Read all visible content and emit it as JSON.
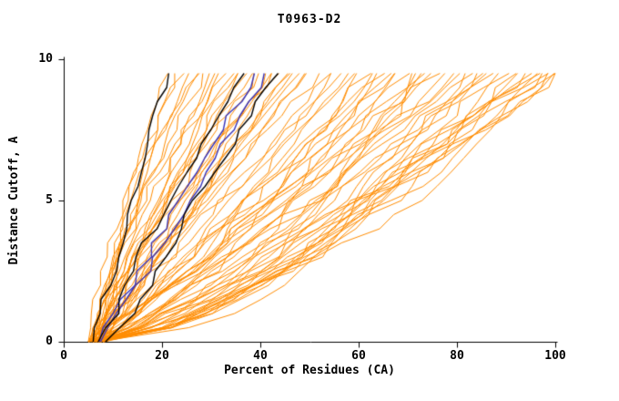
{
  "chart_data": {
    "type": "line",
    "title": "T0963-D2",
    "xlabel": "Percent of Residues (CA)",
    "ylabel": "Distance Cutoff, A",
    "xlim": [
      0,
      100
    ],
    "ylim": [
      0,
      10
    ],
    "x_ticks": [
      0,
      20,
      40,
      60,
      80,
      100
    ],
    "y_ticks": [
      0,
      5,
      10
    ],
    "grid": false,
    "legend": "none",
    "colors": {
      "ensemble": "#ff8c00",
      "highlight": "#000000",
      "special": "#3a35b8",
      "axis": "#000000"
    },
    "y_curve_max": 9.5,
    "y_curve_step": 0.5,
    "ensemble_curves": [
      [
        5,
        21,
        1.8,
        101
      ],
      [
        6,
        23,
        2.0,
        102
      ],
      [
        7,
        24,
        1.6,
        103
      ],
      [
        5.5,
        26,
        1.9,
        104
      ],
      [
        6.5,
        27,
        1.5,
        105
      ],
      [
        7.5,
        28,
        1.7,
        106
      ],
      [
        5,
        29,
        2.1,
        107
      ],
      [
        6,
        30,
        1.4,
        108
      ],
      [
        8,
        31,
        1.6,
        109
      ],
      [
        5.5,
        32,
        1.8,
        110
      ],
      [
        6,
        33,
        1.3,
        111
      ],
      [
        7,
        34,
        1.5,
        112
      ],
      [
        5,
        35,
        1.2,
        113
      ],
      [
        6.5,
        36,
        1.4,
        114
      ],
      [
        8,
        37,
        1.3,
        115
      ],
      [
        5.5,
        38,
        1.2,
        116
      ],
      [
        7,
        39,
        1.35,
        117
      ],
      [
        6,
        40,
        1.25,
        118
      ],
      [
        8.5,
        41,
        1.15,
        119
      ],
      [
        5,
        42,
        1.3,
        120
      ],
      [
        6.5,
        43,
        1.1,
        121
      ],
      [
        7.5,
        44,
        1.2,
        122
      ],
      [
        5.5,
        45,
        1.05,
        123
      ],
      [
        6,
        46,
        1.15,
        124
      ],
      [
        7,
        47,
        1.0,
        125
      ],
      [
        8,
        48,
        1.1,
        126
      ],
      [
        5,
        49,
        1.05,
        127
      ],
      [
        6.5,
        50,
        0.95,
        128
      ],
      [
        7.5,
        52,
        1.0,
        129
      ],
      [
        5.5,
        54,
        0.9,
        130
      ],
      [
        6,
        55,
        0.95,
        131
      ],
      [
        7,
        56,
        0.85,
        132
      ],
      [
        8,
        58,
        0.9,
        133
      ],
      [
        5,
        59,
        0.8,
        134
      ],
      [
        6.5,
        60,
        0.85,
        135
      ],
      [
        7.5,
        62,
        0.8,
        136
      ],
      [
        5.5,
        63,
        0.75,
        137
      ],
      [
        6,
        64,
        0.8,
        138
      ],
      [
        7,
        65,
        0.72,
        139
      ],
      [
        8,
        66,
        0.78,
        140
      ],
      [
        5,
        67,
        0.7,
        141
      ],
      [
        6.5,
        68,
        0.75,
        142
      ],
      [
        7.5,
        70,
        0.68,
        143
      ],
      [
        5.5,
        71,
        0.72,
        144
      ],
      [
        6,
        72,
        0.65,
        145
      ],
      [
        7,
        73,
        0.7,
        146
      ],
      [
        8,
        74,
        0.62,
        147
      ],
      [
        5,
        75,
        0.68,
        148
      ],
      [
        6.5,
        76,
        0.6,
        149
      ],
      [
        7.5,
        78,
        0.65,
        150
      ],
      [
        5.5,
        79,
        0.58,
        151
      ],
      [
        6,
        80,
        0.62,
        152
      ],
      [
        7,
        82,
        0.55,
        153
      ],
      [
        8,
        83,
        0.6,
        154
      ],
      [
        5,
        84,
        0.52,
        155
      ],
      [
        6.5,
        85,
        0.57,
        156
      ],
      [
        7.5,
        86,
        0.5,
        157
      ],
      [
        5.5,
        88,
        0.55,
        158
      ],
      [
        6,
        89,
        0.48,
        159
      ],
      [
        7,
        90,
        0.52,
        160
      ],
      [
        8,
        92,
        0.46,
        161
      ],
      [
        5,
        93,
        0.5,
        162
      ],
      [
        6.5,
        94,
        0.45,
        163
      ],
      [
        7.5,
        95,
        0.48,
        164
      ],
      [
        5.5,
        96,
        0.44,
        165
      ],
      [
        6,
        97,
        0.47,
        166
      ],
      [
        7,
        98,
        0.43,
        167
      ],
      [
        8,
        99,
        0.46,
        168
      ],
      [
        5,
        100,
        0.42,
        169
      ],
      [
        6.5,
        100,
        0.5,
        170
      ],
      [
        7,
        100,
        0.6,
        171
      ],
      [
        5.5,
        98,
        0.55,
        172
      ]
    ],
    "highlight_curves": [
      [
        6,
        21,
        1.25,
        301
      ],
      [
        7,
        36,
        1.05,
        302
      ],
      [
        8.5,
        43,
        0.95,
        303
      ]
    ],
    "special_curves": [
      [
        7,
        39,
        1.05,
        401
      ],
      [
        7.5,
        41,
        1.0,
        402
      ]
    ]
  }
}
